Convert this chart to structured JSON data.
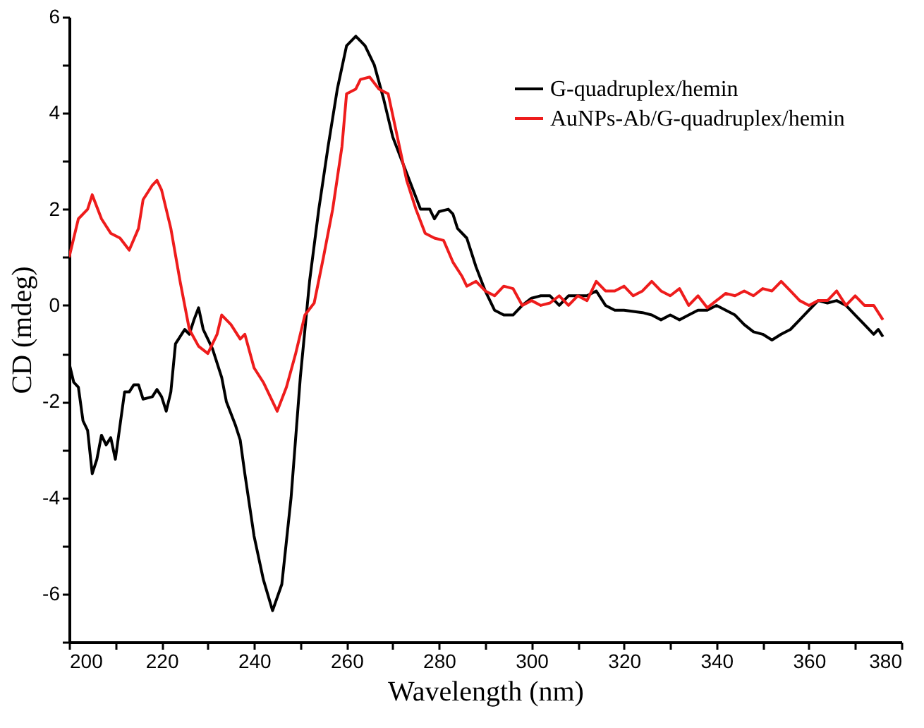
{
  "chart_data": {
    "type": "line",
    "xlabel": "Wavelength (nm)",
    "ylabel": "CD (mdeg)",
    "xlim": [
      200,
      380
    ],
    "ylim": [
      -7,
      6
    ],
    "xticks": [
      200,
      {
        "value": 210,
        "label": null
      },
      220,
      {
        "value": 230,
        "label": null
      },
      240,
      {
        "value": 250,
        "label": null
      },
      260,
      {
        "value": 270,
        "label": null
      },
      280,
      {
        "value": 290,
        "label": null
      },
      300,
      {
        "value": 310,
        "label": null
      },
      320,
      {
        "value": 330,
        "label": null
      },
      340,
      {
        "value": 350,
        "label": null
      },
      360,
      {
        "value": 370,
        "label": null
      },
      380
    ],
    "yticks": [
      {
        "value": -7,
        "label": null
      },
      -6,
      {
        "value": -5,
        "label": null
      },
      -4,
      {
        "value": -3,
        "label": null
      },
      -2,
      {
        "value": -1,
        "label": null
      },
      0,
      {
        "value": 1,
        "label": null
      },
      2,
      {
        "value": 3,
        "label": null
      },
      4,
      {
        "value": 5,
        "label": null
      },
      6
    ],
    "grid": false,
    "legend": "top right",
    "marker": "none",
    "line_style": "solid",
    "series": [
      {
        "name": "G-quadruplex/hemin",
        "color": "#000000",
        "x": [
          200,
          201,
          202,
          203,
          204,
          205,
          206,
          207,
          208,
          209,
          210,
          212,
          213,
          214,
          215,
          216,
          218,
          219,
          220,
          221,
          222,
          223,
          225,
          226,
          227,
          228,
          229,
          231,
          233,
          234,
          236,
          237,
          238,
          240,
          242,
          244,
          246,
          248,
          250,
          252,
          254,
          256,
          258,
          260,
          262,
          264,
          266,
          268,
          270,
          272,
          274,
          276,
          278,
          279,
          280,
          282,
          283,
          284,
          286,
          287,
          288,
          290,
          292,
          294,
          296,
          298,
          300,
          302,
          304,
          306,
          308,
          310,
          312,
          314,
          316,
          318,
          320,
          324,
          326,
          328,
          330,
          332,
          334,
          336,
          338,
          340,
          342,
          344,
          346,
          348,
          350,
          352,
          354,
          356,
          358,
          360,
          362,
          364,
          366,
          368,
          370,
          372,
          374,
          375,
          376
        ],
        "values": [
          -1.2,
          -1.6,
          -1.7,
          -2.4,
          -2.6,
          -3.5,
          -3.2,
          -2.7,
          -2.9,
          -2.75,
          -3.2,
          -1.8,
          -1.8,
          -1.65,
          -1.65,
          -1.95,
          -1.9,
          -1.75,
          -1.9,
          -2.2,
          -1.8,
          -0.8,
          -0.5,
          -0.6,
          -0.3,
          -0.05,
          -0.5,
          -0.9,
          -1.5,
          -2.0,
          -2.5,
          -2.8,
          -3.5,
          -4.8,
          -5.7,
          -6.35,
          -5.8,
          -4.0,
          -1.5,
          0.5,
          2.0,
          3.3,
          4.5,
          5.4,
          5.6,
          5.4,
          5.0,
          4.3,
          3.5,
          3.0,
          2.5,
          2.0,
          2.0,
          1.8,
          1.95,
          2.0,
          1.9,
          1.6,
          1.4,
          1.1,
          0.8,
          0.3,
          -0.1,
          -0.2,
          -0.2,
          0.0,
          0.15,
          0.2,
          0.2,
          0.0,
          0.2,
          0.2,
          0.2,
          0.3,
          0.0,
          -0.1,
          -0.1,
          -0.15,
          -0.2,
          -0.3,
          -0.2,
          -0.3,
          -0.2,
          -0.1,
          -0.1,
          0.0,
          -0.1,
          -0.2,
          -0.4,
          -0.55,
          -0.6,
          -0.72,
          -0.6,
          -0.5,
          -0.3,
          -0.1,
          0.1,
          0.05,
          0.1,
          0.0,
          -0.2,
          -0.4,
          -0.6,
          -0.5,
          -0.65
        ]
      },
      {
        "name": "AuNPs-Ab/G-quadruplex/hemin",
        "color": "#ee1c1c",
        "x": [
          200,
          202,
          204,
          205,
          207,
          209,
          211,
          213,
          215,
          216,
          218,
          219,
          220,
          222,
          224,
          226,
          228,
          230,
          232,
          233,
          235,
          237,
          238,
          240,
          242,
          245,
          247,
          249,
          251,
          253,
          255,
          257,
          259,
          260,
          262,
          263,
          265,
          267,
          269,
          271,
          273,
          275,
          277,
          279,
          281,
          283,
          285,
          286,
          288,
          290,
          292,
          294,
          296,
          298,
          300,
          302,
          304,
          306,
          308,
          310,
          312,
          314,
          316,
          318,
          320,
          322,
          324,
          326,
          328,
          330,
          332,
          334,
          336,
          338,
          340,
          342,
          344,
          346,
          348,
          350,
          352,
          354,
          356,
          358,
          360,
          362,
          364,
          366,
          368,
          370,
          372,
          374,
          376
        ],
        "values": [
          1.0,
          1.8,
          2.0,
          2.3,
          1.8,
          1.5,
          1.4,
          1.15,
          1.6,
          2.2,
          2.5,
          2.6,
          2.4,
          1.6,
          0.5,
          -0.5,
          -0.85,
          -1.0,
          -0.6,
          -0.2,
          -0.4,
          -0.7,
          -0.6,
          -1.3,
          -1.6,
          -2.2,
          -1.7,
          -1.0,
          -0.2,
          0.05,
          1.0,
          2.0,
          3.3,
          4.4,
          4.5,
          4.7,
          4.75,
          4.5,
          4.4,
          3.5,
          2.6,
          2.0,
          1.5,
          1.4,
          1.35,
          0.9,
          0.6,
          0.4,
          0.5,
          0.3,
          0.2,
          0.4,
          0.35,
          0.0,
          0.1,
          0.0,
          0.05,
          0.2,
          0.0,
          0.2,
          0.1,
          0.5,
          0.3,
          0.3,
          0.4,
          0.2,
          0.3,
          0.5,
          0.3,
          0.2,
          0.35,
          0.0,
          0.2,
          -0.05,
          0.1,
          0.25,
          0.2,
          0.3,
          0.2,
          0.35,
          0.3,
          0.5,
          0.3,
          0.1,
          0.0,
          0.1,
          0.1,
          0.3,
          0.0,
          0.2,
          0.0,
          0.0,
          -0.3
        ]
      }
    ]
  }
}
